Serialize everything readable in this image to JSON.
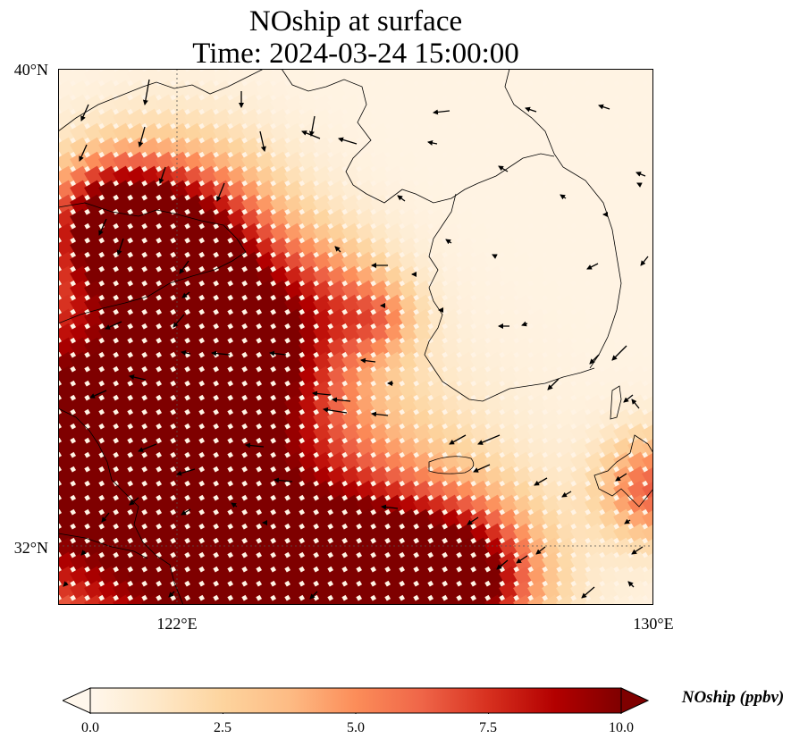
{
  "title_line1": "NOship at surface",
  "title_line2": "Time: 2024-03-24 15:00:00",
  "lat_labels": [
    {
      "text": "40°N",
      "value": 40
    },
    {
      "text": "32°N",
      "value": 32
    }
  ],
  "lon_labels": [
    {
      "text": "122°E",
      "value": 122
    },
    {
      "text": "130°E",
      "value": 130
    }
  ],
  "extent": {
    "lon_min": 120,
    "lon_max": 130,
    "lat_min": 31,
    "lat_max": 40
  },
  "colorbar": {
    "label": "NOship (ppbv)",
    "min": 0,
    "max": 10,
    "ticks": [
      "0.0",
      "2.5",
      "5.0",
      "7.5",
      "10.0"
    ],
    "tick_values": [
      0,
      2.5,
      5,
      7.5,
      10
    ],
    "colormap": [
      "#fff7ec",
      "#fee8c8",
      "#fdd49e",
      "#fdbb84",
      "#fc8d59",
      "#ef6548",
      "#d7301f",
      "#b30000",
      "#7f0000"
    ]
  },
  "colors": {
    "coastline": "#000000",
    "gridline": "#555555",
    "wind_arrow": "#000000"
  }
}
